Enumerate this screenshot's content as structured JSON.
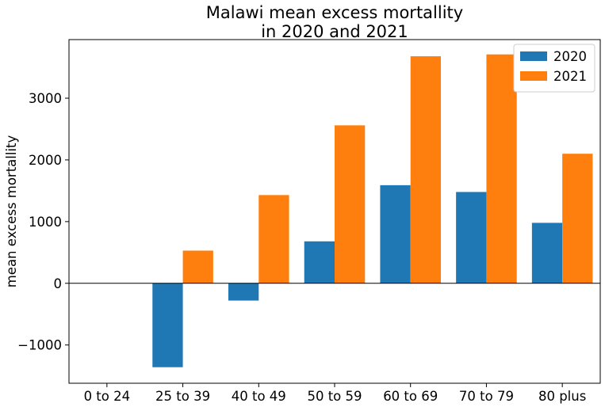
{
  "chart_data": {
    "type": "bar",
    "title_lines": [
      "Malawi mean excess mortallity",
      "in 2020 and 2021"
    ],
    "xlabel": "",
    "ylabel": "mean excess mortallity",
    "categories": [
      "0 to 24",
      "25 to 39",
      "40 to 49",
      "50 to 59",
      "60 to 69",
      "70 to 79",
      "80 plus"
    ],
    "series": [
      {
        "name": "2020",
        "color": "#1f77b4",
        "values": [
          0,
          -1360,
          -280,
          680,
          1590,
          1480,
          980
        ]
      },
      {
        "name": "2021",
        "color": "#ff7f0e",
        "values": [
          0,
          530,
          1430,
          2560,
          3680,
          3710,
          2100
        ]
      }
    ],
    "ylim": [
      -1620,
      3950
    ],
    "yticks": [
      -1000,
      0,
      1000,
      2000,
      3000
    ],
    "ytick_labels": [
      "−1000",
      "0",
      "1000",
      "2000",
      "3000"
    ],
    "zero_line": true,
    "grid": false,
    "legend_position": "top-right"
  }
}
